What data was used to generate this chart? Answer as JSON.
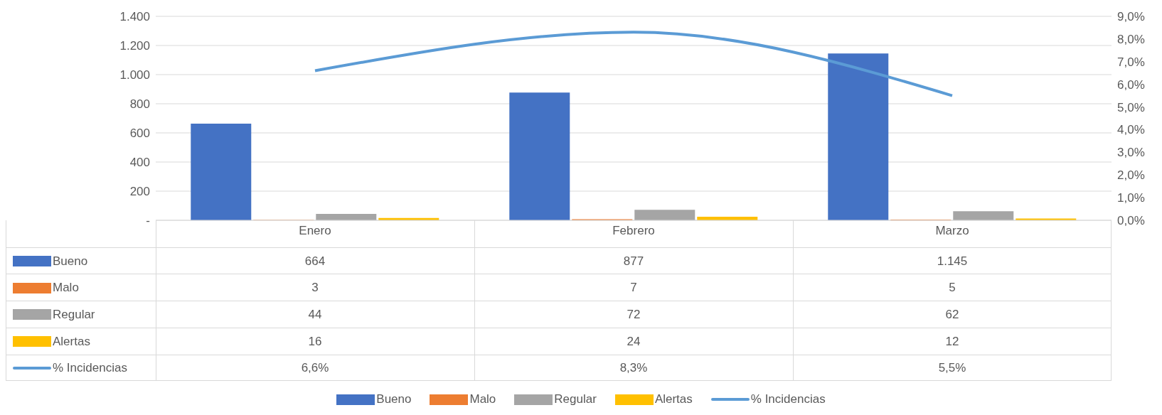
{
  "chart_data": {
    "type": "bar",
    "categories": [
      "Enero",
      "Febrero",
      "Marzo"
    ],
    "series": [
      {
        "name": "Bueno",
        "color": "#4472c4",
        "values": [
          664,
          877,
          1145
        ],
        "value_labels": [
          "664",
          "877",
          "1.145"
        ]
      },
      {
        "name": "Malo",
        "color": "#ed7d31",
        "values": [
          3,
          7,
          5
        ],
        "value_labels": [
          "3",
          "7",
          "5"
        ]
      },
      {
        "name": "Regular",
        "color": "#a5a5a5",
        "values": [
          44,
          72,
          62
        ],
        "value_labels": [
          "44",
          "72",
          "62"
        ]
      },
      {
        "name": "Alertas",
        "color": "#ffc000",
        "values": [
          16,
          24,
          12
        ],
        "value_labels": [
          "16",
          "24",
          "12"
        ]
      },
      {
        "name": "% Incidencias",
        "type": "line",
        "axis": "y2",
        "color": "#5b9bd5",
        "values": [
          6.6,
          8.3,
          5.5
        ],
        "value_labels": [
          "6,6%",
          "8,3%",
          "5,5%"
        ]
      }
    ],
    "ylim": [
      0,
      1400
    ],
    "yticks": [
      {
        "value": 0,
        "label": "-"
      },
      200,
      400,
      600,
      800,
      {
        "value": 1000,
        "label": "1.000"
      },
      {
        "value": 1200,
        "label": "1.200"
      },
      {
        "value": 1400,
        "label": "1.400"
      }
    ],
    "y2lim": [
      0,
      9
    ],
    "y2ticks": [
      {
        "value": 0,
        "label": "0,0%"
      },
      {
        "value": 1,
        "label": "1,0%"
      },
      {
        "value": 2,
        "label": "2,0%"
      },
      {
        "value": 3,
        "label": "3,0%"
      },
      {
        "value": 4,
        "label": "4,0%"
      },
      {
        "value": 5,
        "label": "5,0%"
      },
      {
        "value": 6,
        "label": "6,0%"
      },
      {
        "value": 7,
        "label": "7,0%"
      },
      {
        "value": 8,
        "label": "8,0%"
      },
      {
        "value": 9,
        "label": "9,0%"
      }
    ],
    "grid": "y",
    "legend": "bottom",
    "marker": "none"
  }
}
